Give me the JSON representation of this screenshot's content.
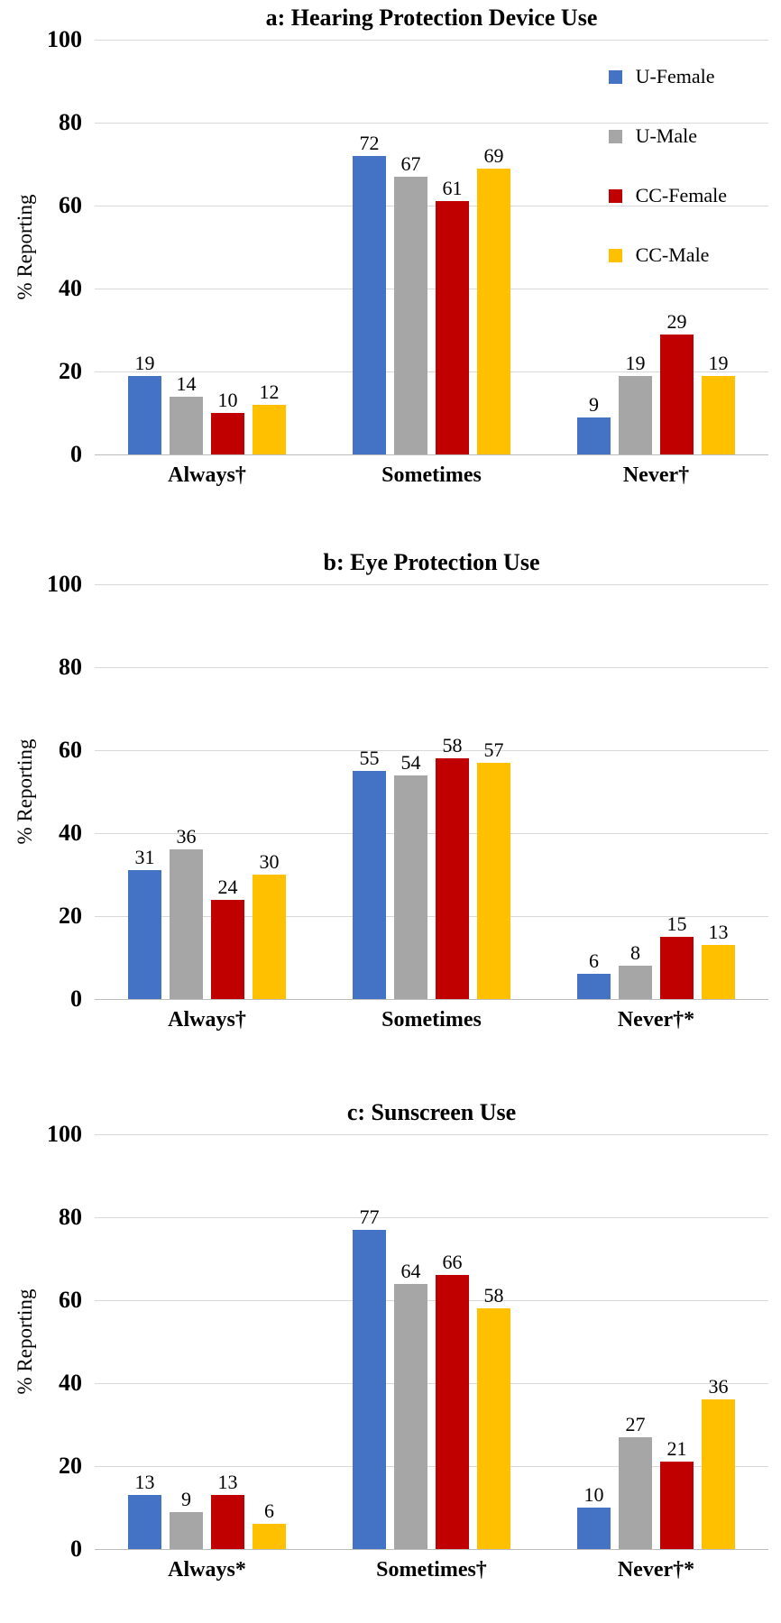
{
  "figure_name": "protective-behavior-bar-charts",
  "palette": {
    "u_female_blue": "#4472C4",
    "u_male_gray": "#A6A6A6",
    "cc_female_red": "#C00000",
    "cc_male_yellow": "#FFC000",
    "gridline": "#D8D8D8",
    "axis_baseline": "#BDBDBD"
  },
  "legend": {
    "position": "top-right-inside-first-chart",
    "items": [
      {
        "label": "U-Female",
        "color": "#4472C4"
      },
      {
        "label": "U-Male",
        "color": "#A6A6A6"
      },
      {
        "label": "CC-Female",
        "color": "#C00000"
      },
      {
        "label": "CC-Male",
        "color": "#FFC000"
      }
    ]
  },
  "chart_data": [
    {
      "type": "bar",
      "title": "a: Hearing Protection Device Use",
      "ylabel": "% Reporting",
      "ylim": [
        0,
        100
      ],
      "yticks": [
        0,
        20,
        40,
        60,
        80,
        100
      ],
      "grid": true,
      "legend_visible": true,
      "categories": [
        "Always†",
        "Sometimes",
        "Never†"
      ],
      "series": [
        {
          "name": "U-Female",
          "color": "#4472C4",
          "values": [
            19,
            72,
            9
          ]
        },
        {
          "name": "U-Male",
          "color": "#A6A6A6",
          "values": [
            14,
            67,
            19
          ]
        },
        {
          "name": "CC-Female",
          "color": "#C00000",
          "values": [
            10,
            61,
            29
          ]
        },
        {
          "name": "CC-Male",
          "color": "#FFC000",
          "values": [
            12,
            69,
            19
          ]
        }
      ]
    },
    {
      "type": "bar",
      "title": "b: Eye Protection Use",
      "ylabel": "% Reporting",
      "ylim": [
        0,
        100
      ],
      "yticks": [
        0,
        20,
        40,
        60,
        80,
        100
      ],
      "grid": true,
      "legend_visible": false,
      "categories": [
        "Always†",
        "Sometimes",
        "Never†*"
      ],
      "series": [
        {
          "name": "U-Female",
          "color": "#4472C4",
          "values": [
            31,
            55,
            6
          ]
        },
        {
          "name": "U-Male",
          "color": "#A6A6A6",
          "values": [
            36,
            54,
            8
          ]
        },
        {
          "name": "CC-Female",
          "color": "#C00000",
          "values": [
            24,
            58,
            15
          ]
        },
        {
          "name": "CC-Male",
          "color": "#FFC000",
          "values": [
            30,
            57,
            13
          ]
        }
      ]
    },
    {
      "type": "bar",
      "title": "c: Sunscreen Use",
      "ylabel": "% Reporting",
      "ylim": [
        0,
        100
      ],
      "yticks": [
        0,
        20,
        40,
        60,
        80,
        100
      ],
      "grid": true,
      "legend_visible": false,
      "categories": [
        "Always*",
        "Sometimes†",
        "Never†*"
      ],
      "series": [
        {
          "name": "U-Female",
          "color": "#4472C4",
          "values": [
            13,
            77,
            10
          ]
        },
        {
          "name": "U-Male",
          "color": "#A6A6A6",
          "values": [
            9,
            64,
            27
          ]
        },
        {
          "name": "CC-Female",
          "color": "#C00000",
          "values": [
            13,
            66,
            21
          ]
        },
        {
          "name": "CC-Male",
          "color": "#FFC000",
          "values": [
            6,
            58,
            36
          ]
        }
      ]
    }
  ]
}
